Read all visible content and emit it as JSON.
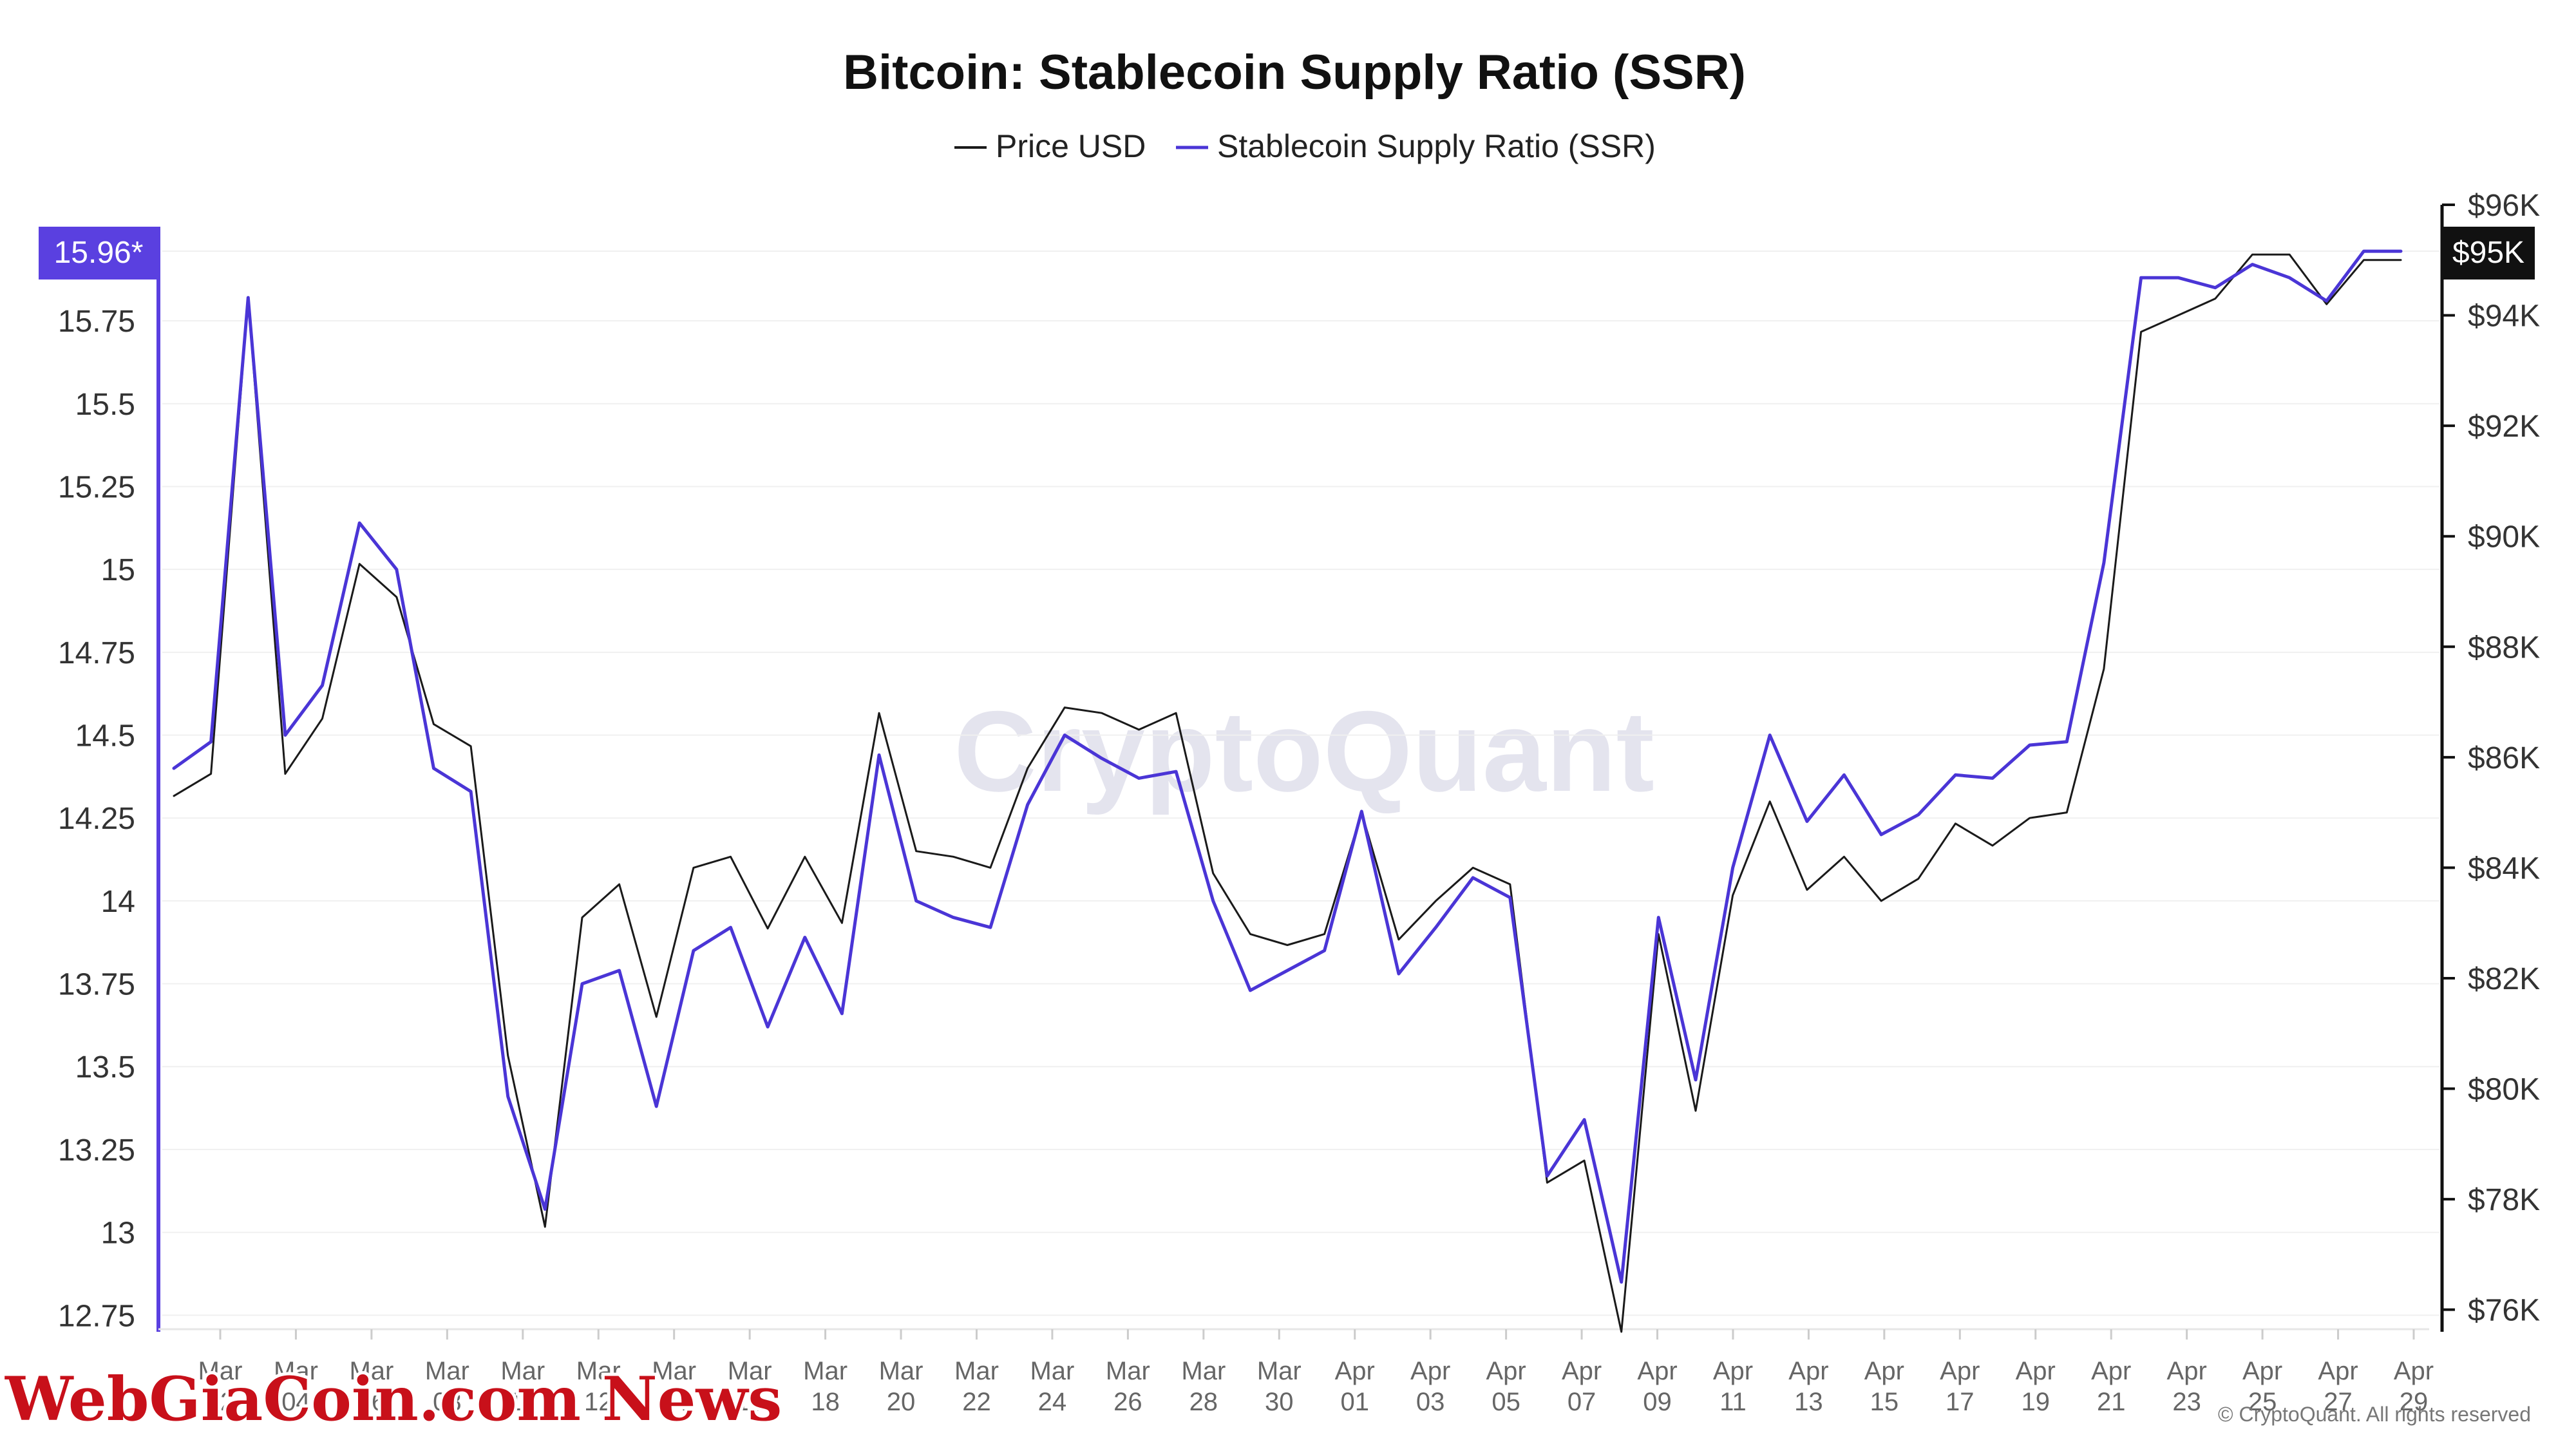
{
  "watermark": "CryptoQuant",
  "copyright": "© CryptoQuant. All rights reserved",
  "overlay_logo": "WebGiaCoin.com News",
  "colors": {
    "price": "#1a1a1a",
    "ssr": "#4a35d6",
    "left_axis": "#5a40e0",
    "right_axis": "#111111",
    "grid": "#f0f0f0",
    "overlay": "#c8101a"
  },
  "chart_data": {
    "type": "line",
    "title": "Bitcoin: Stablecoin Supply Ratio (SSR)",
    "legend_position": "top-center",
    "grid": true,
    "x": [
      "Mar 01",
      "Mar 01",
      "Mar 02",
      "Mar 03",
      "Mar 04",
      "Mar 05",
      "Mar 06",
      "Mar 07",
      "Mar 08",
      "Mar 09",
      "Mar 10",
      "Mar 11",
      "Mar 12",
      "Mar 13",
      "Mar 14",
      "Mar 15",
      "Mar 16",
      "Mar 17",
      "Mar 18",
      "Mar 19",
      "Mar 20",
      "Mar 21",
      "Mar 22",
      "Mar 23",
      "Mar 24",
      "Mar 25",
      "Mar 26",
      "Mar 27",
      "Mar 28",
      "Mar 29",
      "Mar 30",
      "Mar 31",
      "Apr 01",
      "Apr 02",
      "Apr 03",
      "Apr 04",
      "Apr 05",
      "Apr 06",
      "Apr 07",
      "Apr 08",
      "Apr 09",
      "Apr 10",
      "Apr 11",
      "Apr 12",
      "Apr 13",
      "Apr 14",
      "Apr 15",
      "Apr 16",
      "Apr 17",
      "Apr 18",
      "Apr 19",
      "Apr 20",
      "Apr 21",
      "Apr 22",
      "Apr 23",
      "Apr 24",
      "Apr 25",
      "Apr 26",
      "Apr 27",
      "Apr 28",
      "Apr 29"
    ],
    "x_tick_labels": [
      [
        "Mar",
        "02"
      ],
      [
        "Mar",
        "04"
      ],
      [
        "Mar",
        "06"
      ],
      [
        "Mar",
        "08"
      ],
      [
        "Mar",
        "10"
      ],
      [
        "Mar",
        "12"
      ],
      [
        "Mar",
        "14"
      ],
      [
        "Mar",
        "16"
      ],
      [
        "Mar",
        "18"
      ],
      [
        "Mar",
        "20"
      ],
      [
        "Mar",
        "22"
      ],
      [
        "Mar",
        "24"
      ],
      [
        "Mar",
        "26"
      ],
      [
        "Mar",
        "28"
      ],
      [
        "Mar",
        "30"
      ],
      [
        "Apr",
        "01"
      ],
      [
        "Apr",
        "03"
      ],
      [
        "Apr",
        "05"
      ],
      [
        "Apr",
        "07"
      ],
      [
        "Apr",
        "09"
      ],
      [
        "Apr",
        "11"
      ],
      [
        "Apr",
        "13"
      ],
      [
        "Apr",
        "15"
      ],
      [
        "Apr",
        "17"
      ],
      [
        "Apr",
        "19"
      ],
      [
        "Apr",
        "21"
      ],
      [
        "Apr",
        "23"
      ],
      [
        "Apr",
        "25"
      ],
      [
        "Apr",
        "27"
      ],
      [
        "Apr",
        "29"
      ]
    ],
    "y_left": {
      "range": [
        12.7,
        16.1
      ],
      "ticks": [
        12.75,
        13,
        13.25,
        13.5,
        13.75,
        14,
        14.25,
        14.5,
        14.75,
        15,
        15.25,
        15.5,
        15.75
      ],
      "tick_labels": [
        "12.75",
        "13",
        "13.25",
        "13.5",
        "13.75",
        "14",
        "14.25",
        "14.5",
        "14.75",
        "15",
        "15.25",
        "15.5",
        "15.75"
      ],
      "current_label": "15.96*",
      "current_value": 15.96
    },
    "y_right": {
      "range": [
        75600,
        96000
      ],
      "ticks": [
        76000,
        78000,
        80000,
        82000,
        84000,
        86000,
        88000,
        90000,
        92000,
        94000,
        96000
      ],
      "tick_labels": [
        "$76K",
        "$78K",
        "$80K",
        "$82K",
        "$84K",
        "$86K",
        "$88K",
        "$90K",
        "$92K",
        "$94K",
        "$96K"
      ],
      "current_label": "$95K",
      "current_value": 95000
    },
    "series": [
      {
        "name": "Price USD",
        "axis": "right",
        "color": "#1a1a1a",
        "values": [
          85300,
          85700,
          94300,
          85700,
          86700,
          89500,
          88900,
          86600,
          86200,
          80600,
          77500,
          83100,
          83700,
          81300,
          84000,
          84200,
          82900,
          84200,
          83000,
          86800,
          84300,
          84200,
          84000,
          85800,
          86900,
          86800,
          86500,
          86800,
          83900,
          82800,
          82600,
          82800,
          85000,
          82700,
          83400,
          84000,
          83700,
          78300,
          78700,
          75600,
          82800,
          79600,
          83500,
          85200,
          83600,
          84200,
          83400,
          83800,
          84800,
          84400,
          84900,
          85000,
          87600,
          93700,
          94000,
          94300,
          95100,
          95100,
          94200,
          95000,
          95000
        ]
      },
      {
        "name": "Stablecoin Supply Ratio (SSR)",
        "axis": "left",
        "color": "#4a35d6",
        "values": [
          14.4,
          14.48,
          15.82,
          14.5,
          14.65,
          15.14,
          15.0,
          14.4,
          14.33,
          13.41,
          13.07,
          13.75,
          13.79,
          13.38,
          13.85,
          13.92,
          13.62,
          13.89,
          13.66,
          14.44,
          14.0,
          13.95,
          13.92,
          14.29,
          14.5,
          14.43,
          14.37,
          14.39,
          14.0,
          13.73,
          13.79,
          13.85,
          14.27,
          13.78,
          13.92,
          14.07,
          14.01,
          13.17,
          13.34,
          12.85,
          13.95,
          13.46,
          14.1,
          14.5,
          14.24,
          14.38,
          14.2,
          14.26,
          14.38,
          14.37,
          14.47,
          14.48,
          15.02,
          15.88,
          15.88,
          15.85,
          15.92,
          15.88,
          15.81,
          15.96,
          15.96
        ]
      }
    ]
  }
}
